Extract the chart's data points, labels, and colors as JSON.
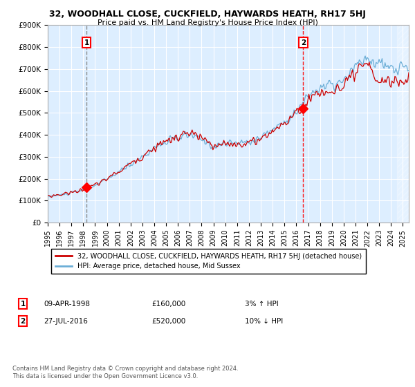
{
  "title": "32, WOODHALL CLOSE, CUCKFIELD, HAYWARDS HEATH, RH17 5HJ",
  "subtitle": "Price paid vs. HM Land Registry's House Price Index (HPI)",
  "ylim": [
    0,
    900000
  ],
  "yticks": [
    0,
    100000,
    200000,
    300000,
    400000,
    500000,
    600000,
    700000,
    800000,
    900000
  ],
  "ytick_labels": [
    "£0",
    "£100K",
    "£200K",
    "£300K",
    "£400K",
    "£500K",
    "£600K",
    "£700K",
    "£800K",
    "£900K"
  ],
  "hpi_color": "#6baed6",
  "price_color": "#cc0000",
  "bg_color": "#ddeeff",
  "purchase1_date": "09-APR-1998",
  "purchase1_price": 160000,
  "purchase1_pct": "3%",
  "purchase1_dir": "↑",
  "purchase2_date": "27-JUL-2016",
  "purchase2_price": 520000,
  "purchase2_pct": "10%",
  "purchase2_dir": "↓",
  "legend_label1": "32, WOODHALL CLOSE, CUCKFIELD, HAYWARDS HEATH, RH17 5HJ (detached house)",
  "legend_label2": "HPI: Average price, detached house, Mid Sussex",
  "footnote": "Contains HM Land Registry data © Crown copyright and database right 2024.\nThis data is licensed under the Open Government Licence v3.0.",
  "m1_x": 1998.27,
  "m1_y": 160000,
  "m2_x": 2016.58,
  "m2_y": 520000,
  "xmin": 1995.0,
  "xmax": 2025.5,
  "hatch_start": 2024.5
}
